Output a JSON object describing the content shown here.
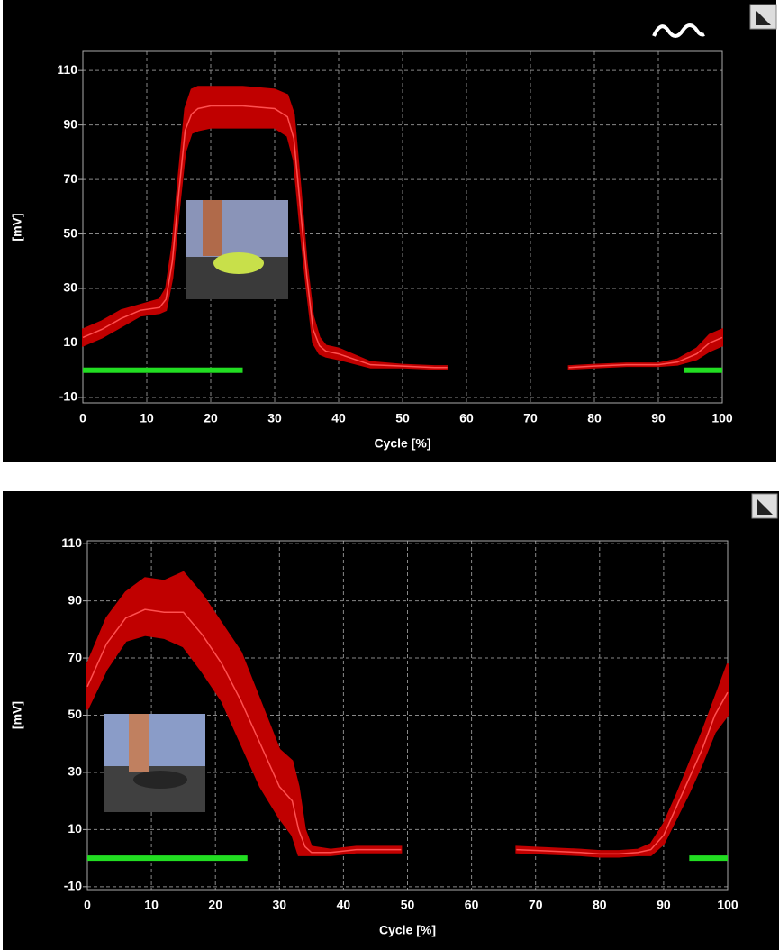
{
  "chart_data": [
    {
      "type": "line",
      "xlabel": "Cycle [%]",
      "ylabel": "[mV]",
      "xlim": [
        0,
        100
      ],
      "xticks": [
        0,
        10,
        20,
        30,
        40,
        50,
        60,
        70,
        80,
        90,
        100
      ],
      "ylim": [
        -12,
        117
      ],
      "yticks": [
        -10,
        10,
        30,
        50,
        70,
        90,
        110
      ],
      "grid": true,
      "x": [
        0,
        3,
        6,
        9,
        12,
        13,
        14,
        15,
        16,
        17,
        18,
        20,
        25,
        30,
        32,
        33,
        34,
        35,
        36,
        37,
        38,
        40,
        45,
        50,
        55,
        57,
        66,
        76,
        80,
        85,
        90,
        93,
        96,
        98,
        100
      ],
      "series": [
        {
          "color": "#ff5050",
          "values": [
            12,
            15,
            19,
            22,
            23,
            26,
            40,
            65,
            88,
            94,
            96,
            97,
            97,
            96,
            93,
            85,
            60,
            35,
            15,
            9,
            7,
            6,
            2,
            1.5,
            1,
            1,
            null,
            1,
            1.5,
            2,
            2,
            3,
            6,
            10,
            12
          ]
        }
      ],
      "band": {
        "color": "#c00000",
        "upper": [
          15,
          18,
          22,
          24,
          26,
          30,
          46,
          72,
          96,
          103,
          104,
          104,
          104,
          103,
          101,
          94,
          68,
          40,
          20,
          12,
          9,
          8,
          3,
          2,
          1.5,
          1.5,
          null,
          1.5,
          2,
          2.5,
          2.5,
          4,
          8,
          13,
          15
        ],
        "lower": [
          9,
          12,
          16,
          20,
          21,
          22,
          34,
          58,
          80,
          87,
          88,
          89,
          89,
          89,
          86,
          77,
          52,
          30,
          10,
          6,
          5,
          4,
          1,
          1,
          0.5,
          0.5,
          null,
          0.5,
          1,
          1.5,
          1.5,
          2,
          4,
          7,
          9
        ]
      },
      "phases": [
        {
          "start": 0,
          "end": 25
        },
        {
          "start": 94,
          "end": 100
        }
      ],
      "phase_color": "#22dd22"
    },
    {
      "type": "line",
      "xlabel": "Cycle [%]",
      "ylabel": "[mV]",
      "xlim": [
        0,
        100
      ],
      "xticks": [
        0,
        10,
        20,
        30,
        40,
        50,
        60,
        70,
        80,
        90,
        100
      ],
      "ylim": [
        -11,
        111
      ],
      "yticks": [
        -10,
        10,
        30,
        50,
        70,
        90,
        110
      ],
      "grid": true,
      "x": [
        0,
        3,
        6,
        9,
        12,
        15,
        18,
        21,
        24,
        27,
        30,
        32,
        33,
        34,
        35,
        38,
        42,
        46,
        49,
        60,
        67,
        72,
        77,
        80,
        83,
        86,
        88,
        90,
        92,
        94,
        96,
        98,
        100
      ],
      "series": [
        {
          "color": "#ff5050",
          "values": [
            60,
            75,
            84,
            87,
            86,
            86,
            78,
            68,
            55,
            40,
            25,
            20,
            10,
            4,
            2,
            2,
            3,
            3,
            3,
            null,
            3,
            2.5,
            2,
            1.5,
            1.5,
            2,
            3,
            8,
            18,
            28,
            38,
            50,
            58
          ]
        }
      ],
      "band": {
        "color": "#c00000",
        "upper": [
          68,
          84,
          93,
          98,
          97,
          100,
          92,
          82,
          72,
          55,
          38,
          34,
          25,
          10,
          4,
          3,
          4,
          4,
          4,
          null,
          4,
          3.5,
          3,
          2.5,
          2.5,
          3,
          5,
          12,
          22,
          33,
          44,
          56,
          68
        ],
        "lower": [
          52,
          66,
          76,
          78,
          77,
          74,
          65,
          55,
          40,
          25,
          14,
          8,
          1,
          1,
          1,
          1,
          2,
          2,
          2,
          null,
          2,
          1.5,
          1,
          0.5,
          0.5,
          1,
          1,
          5,
          14,
          23,
          33,
          44,
          50
        ]
      },
      "phases": [
        {
          "start": 0,
          "end": 25
        },
        {
          "start": 94,
          "end": 100
        }
      ],
      "phase_color": "#22dd22"
    }
  ]
}
